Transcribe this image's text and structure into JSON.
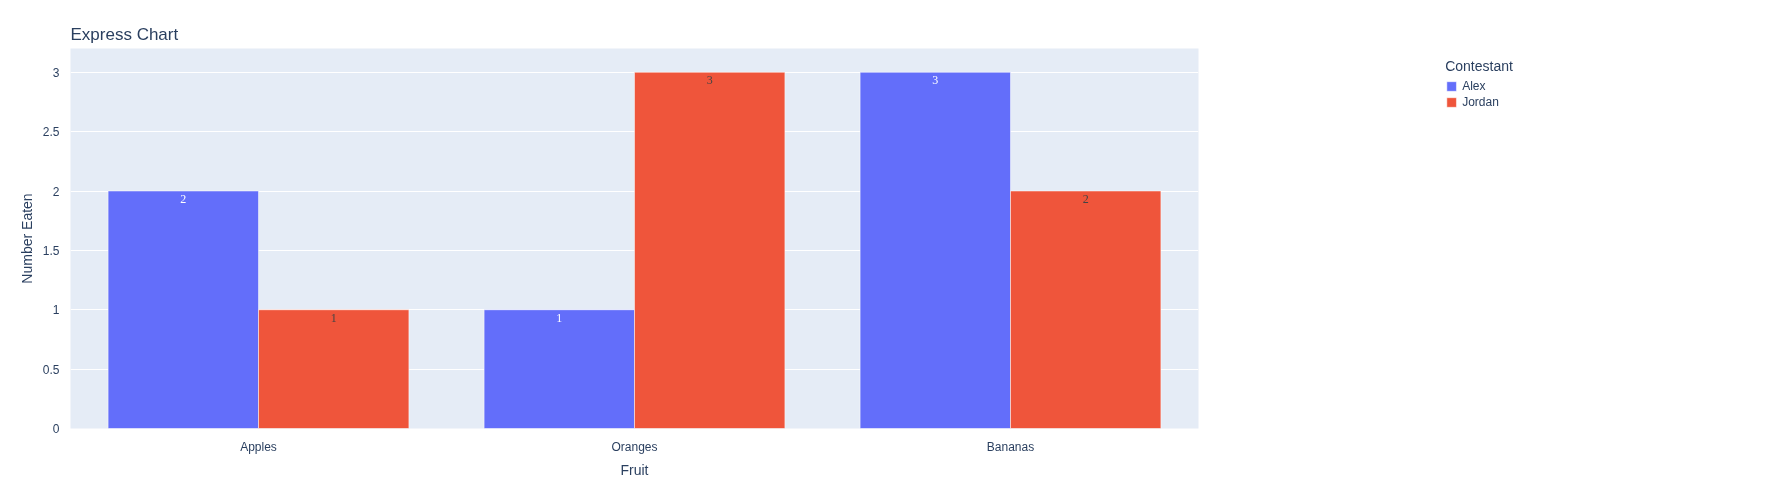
{
  "chart_data": {
    "type": "bar",
    "title": "Express Chart",
    "xlabel": "Fruit",
    "ylabel": "Number Eaten",
    "legend_title": "Contestant",
    "categories": [
      "Apples",
      "Oranges",
      "Bananas"
    ],
    "series": [
      {
        "name": "Alex",
        "color": "#636efa",
        "values": [
          2,
          1,
          3
        ]
      },
      {
        "name": "Jordan",
        "color": "#ef553b",
        "values": [
          1,
          3,
          2
        ]
      }
    ],
    "ylim": [
      0,
      3.2
    ],
    "yticks": [
      0,
      0.5,
      1,
      1.5,
      2,
      2.5,
      3
    ],
    "grid": "y",
    "legend": "top right",
    "data_labels": true
  }
}
